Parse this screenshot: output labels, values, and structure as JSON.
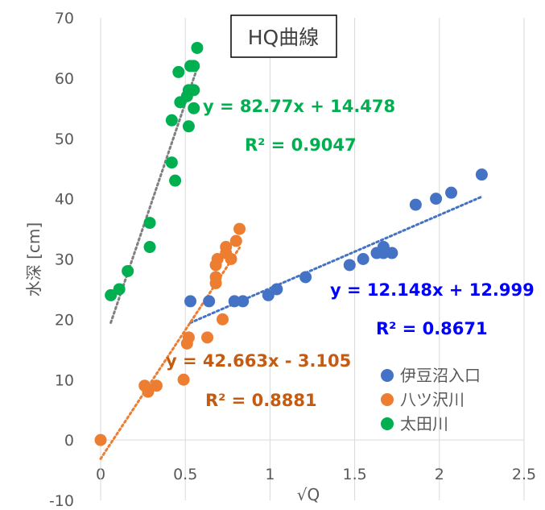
{
  "chart_data": {
    "type": "scatter",
    "title": "HQ曲線",
    "xlabel": "√Q",
    "ylabel": "水深 [cm]",
    "xlim": [
      0,
      2.5
    ],
    "ylim": [
      -10,
      70
    ],
    "x_ticks": [
      "0",
      "0.5",
      "1",
      "1.5",
      "2",
      "2.5"
    ],
    "y_ticks": [
      "-10",
      "0",
      "10",
      "20",
      "30",
      "40",
      "50",
      "60",
      "70"
    ],
    "grid": "vertical",
    "legend_position": "bottom-right",
    "series": [
      {
        "name": "伊豆沼入口",
        "color": "#4472c4",
        "points": [
          [
            0.53,
            23
          ],
          [
            0.64,
            23
          ],
          [
            0.79,
            23
          ],
          [
            0.84,
            23
          ],
          [
            0.99,
            24
          ],
          [
            1.04,
            25
          ],
          [
            1.21,
            27
          ],
          [
            1.47,
            29
          ],
          [
            1.55,
            30
          ],
          [
            1.63,
            31
          ],
          [
            1.67,
            31
          ],
          [
            1.67,
            32
          ],
          [
            1.72,
            31
          ],
          [
            1.86,
            39
          ],
          [
            1.98,
            40
          ],
          [
            2.07,
            41
          ],
          [
            2.25,
            44
          ]
        ],
        "trendline": {
          "slope": 12.148,
          "intercept": 12.999,
          "x_range": [
            0.53,
            2.25
          ],
          "color": "#4472c4",
          "equation": "y = 12.148x + 12.999",
          "r2": "R² = 0.8671"
        }
      },
      {
        "name": "八ツ沢川",
        "color": "#ed7d31",
        "points": [
          [
            0.0,
            0
          ],
          [
            0.26,
            9
          ],
          [
            0.28,
            8
          ],
          [
            0.33,
            9
          ],
          [
            0.49,
            10
          ],
          [
            0.51,
            16
          ],
          [
            0.52,
            17
          ],
          [
            0.63,
            17
          ],
          [
            0.68,
            26
          ],
          [
            0.68,
            27
          ],
          [
            0.68,
            29
          ],
          [
            0.69,
            30
          ],
          [
            0.72,
            20
          ],
          [
            0.74,
            31
          ],
          [
            0.74,
            32
          ],
          [
            0.77,
            30
          ],
          [
            0.8,
            33
          ],
          [
            0.82,
            35
          ]
        ],
        "trendline": {
          "slope": 42.663,
          "intercept": -3.105,
          "x_range": [
            0.0,
            0.82
          ],
          "color": "#ed7d31",
          "equation": "y = 42.663x - 3.105",
          "r2": "R² = 0.8881"
        }
      },
      {
        "name": "太田川",
        "color": "#00b050",
        "points": [
          [
            0.06,
            24
          ],
          [
            0.11,
            25
          ],
          [
            0.16,
            28
          ],
          [
            0.29,
            36
          ],
          [
            0.29,
            32
          ],
          [
            0.42,
            53
          ],
          [
            0.42,
            46
          ],
          [
            0.44,
            43
          ],
          [
            0.46,
            61
          ],
          [
            0.47,
            56
          ],
          [
            0.51,
            57
          ],
          [
            0.52,
            58
          ],
          [
            0.52,
            52
          ],
          [
            0.53,
            62
          ],
          [
            0.55,
            62
          ],
          [
            0.55,
            58
          ],
          [
            0.55,
            55
          ],
          [
            0.57,
            65
          ]
        ],
        "trendline": {
          "slope": 82.77,
          "intercept": 14.478,
          "x_range": [
            0.06,
            0.57
          ],
          "color": "#808080",
          "equation": "y = 82.77x + 14.478",
          "r2": "R² = 0.9047"
        }
      }
    ]
  }
}
